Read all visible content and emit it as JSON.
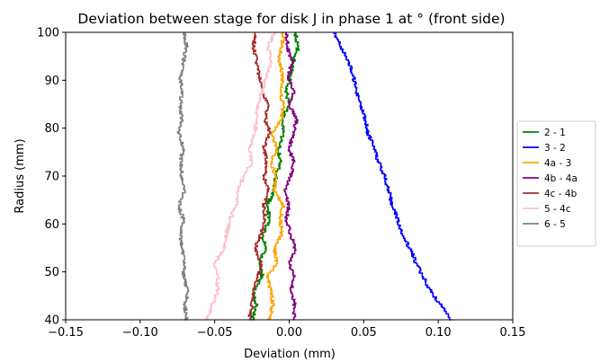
{
  "chart_data": {
    "type": "line",
    "title": "Deviation between stage for disk J in phase 1 at ° (front side)",
    "xlabel": "Deviation (mm)",
    "ylabel": "Radius (mm)",
    "xlim": [
      -0.15,
      0.15
    ],
    "ylim": [
      40,
      100
    ],
    "xticks": [
      -0.15,
      -0.1,
      -0.05,
      0.0,
      0.05,
      0.1,
      0.15
    ],
    "xtick_labels": [
      "−0.15",
      "−0.10",
      "−0.05",
      "0.00",
      "0.05",
      "0.10",
      "0.15"
    ],
    "yticks": [
      40,
      50,
      60,
      70,
      80,
      90,
      100
    ],
    "ytick_labels": [
      "40",
      "50",
      "60",
      "70",
      "80",
      "90",
      "100"
    ],
    "grid": false,
    "legend_position": "right",
    "radius": [
      40,
      43,
      46,
      49,
      52,
      55,
      58,
      61,
      64,
      67,
      70,
      73,
      76,
      79,
      82,
      85,
      88,
      91,
      94,
      97,
      100
    ],
    "series": [
      {
        "name": "2 - 1",
        "color": "#008000",
        "values": [
          -0.025,
          -0.022,
          -0.024,
          -0.018,
          -0.02,
          -0.016,
          -0.018,
          -0.013,
          -0.015,
          -0.01,
          -0.009,
          -0.006,
          -0.007,
          -0.004,
          -0.005,
          0.0,
          -0.002,
          0.001,
          0.003,
          0.006,
          0.004
        ]
      },
      {
        "name": "3 - 2",
        "color": "#0000ff",
        "values": [
          0.109,
          0.102,
          0.095,
          0.09,
          0.085,
          0.081,
          0.076,
          0.073,
          0.069,
          0.067,
          0.064,
          0.06,
          0.057,
          0.053,
          0.051,
          0.048,
          0.045,
          0.043,
          0.04,
          0.035,
          0.03
        ]
      },
      {
        "name": "4a - 3",
        "color": "#ffa500",
        "values": [
          -0.014,
          -0.011,
          -0.012,
          -0.015,
          -0.008,
          -0.01,
          -0.005,
          -0.006,
          -0.004,
          -0.01,
          -0.009,
          -0.012,
          -0.008,
          -0.012,
          -0.005,
          -0.004,
          -0.006,
          -0.004,
          -0.007,
          -0.005,
          -0.004
        ]
      },
      {
        "name": "4b - 4a",
        "color": "#800080",
        "values": [
          0.003,
          0.004,
          0.001,
          0.003,
          0.0,
          0.004,
          0.001,
          -0.002,
          0.0,
          -0.003,
          0.001,
          0.003,
          0.0,
          0.003,
          0.005,
          0.0,
          0.003,
          -0.001,
          0.002,
          -0.001,
          -0.002
        ]
      },
      {
        "name": "4c - 4b",
        "color": "#a52a2a",
        "values": [
          -0.027,
          -0.025,
          -0.024,
          -0.021,
          -0.019,
          -0.023,
          -0.019,
          -0.016,
          -0.017,
          -0.014,
          -0.017,
          -0.015,
          -0.017,
          -0.013,
          -0.016,
          -0.014,
          -0.018,
          -0.02,
          -0.022,
          -0.024,
          -0.023
        ]
      },
      {
        "name": "5 - 4c",
        "color": "#ffc0cb",
        "values": [
          -0.055,
          -0.052,
          -0.048,
          -0.048,
          -0.05,
          -0.044,
          -0.042,
          -0.04,
          -0.036,
          -0.034,
          -0.031,
          -0.025,
          -0.027,
          -0.023,
          -0.022,
          -0.021,
          -0.018,
          -0.015,
          -0.012,
          -0.014,
          -0.01
        ]
      },
      {
        "name": "6 - 5",
        "color": "#808080",
        "values": [
          -0.069,
          -0.07,
          -0.068,
          -0.071,
          -0.07,
          -0.072,
          -0.073,
          -0.071,
          -0.074,
          -0.07,
          -0.072,
          -0.073,
          -0.071,
          -0.074,
          -0.072,
          -0.073,
          -0.072,
          -0.073,
          -0.071,
          -0.069,
          -0.07
        ]
      }
    ]
  }
}
